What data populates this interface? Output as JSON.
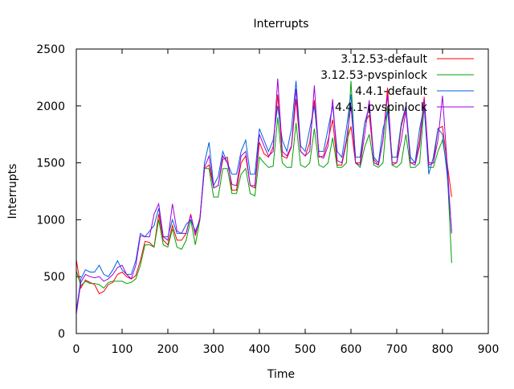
{
  "chart_data": {
    "type": "line",
    "title": "Interrupts",
    "xlabel": "Time",
    "ylabel": "Interrupts",
    "xlim": [
      0,
      900
    ],
    "ylim": [
      0,
      2500
    ],
    "xticks": [
      0,
      100,
      200,
      300,
      400,
      500,
      600,
      700,
      800,
      900
    ],
    "yticks": [
      0,
      500,
      1000,
      1500,
      2000,
      2500
    ],
    "legend_position": "top-right",
    "grid": false,
    "series": [
      {
        "name": "3.12.53-default",
        "color": "#ff0000",
        "x": [
          0,
          10,
          20,
          30,
          40,
          50,
          60,
          70,
          80,
          90,
          100,
          110,
          120,
          130,
          140,
          150,
          160,
          170,
          180,
          190,
          200,
          210,
          220,
          230,
          240,
          250,
          260,
          270,
          280,
          290,
          300,
          310,
          320,
          330,
          340,
          350,
          360,
          370,
          380,
          390,
          400,
          410,
          420,
          430,
          440,
          450,
          460,
          470,
          480,
          490,
          500,
          510,
          520,
          530,
          540,
          550,
          560,
          570,
          580,
          590,
          600,
          610,
          620,
          630,
          640,
          650,
          660,
          670,
          680,
          690,
          700,
          710,
          720,
          730,
          740,
          750,
          760,
          770,
          780,
          790,
          800,
          810,
          820
        ],
        "y": [
          650,
          400,
          470,
          450,
          430,
          350,
          370,
          430,
          450,
          520,
          540,
          500,
          480,
          510,
          640,
          810,
          800,
          760,
          1050,
          820,
          780,
          950,
          820,
          820,
          880,
          1050,
          860,
          1020,
          1450,
          1480,
          1280,
          1300,
          1530,
          1550,
          1260,
          1260,
          1500,
          1560,
          1300,
          1280,
          1680,
          1580,
          1550,
          1640,
          2100,
          1560,
          1540,
          1640,
          2060,
          1600,
          1560,
          1680,
          2050,
          1550,
          1560,
          1700,
          1880,
          1480,
          1480,
          1680,
          1820,
          1500,
          1500,
          1850,
          1920,
          1530,
          1480,
          1700,
          2160,
          1480,
          1500,
          1820,
          1980,
          1500,
          1500,
          1700,
          2080,
          1500,
          1500,
          1800,
          1820,
          1500,
          1200
        ]
      },
      {
        "name": "3.12.53-pvspinlock",
        "color": "#00a000",
        "x": [
          0,
          10,
          20,
          30,
          40,
          50,
          60,
          70,
          80,
          90,
          100,
          110,
          120,
          130,
          140,
          150,
          160,
          170,
          180,
          190,
          200,
          210,
          220,
          230,
          240,
          250,
          260,
          270,
          280,
          290,
          300,
          310,
          320,
          330,
          340,
          350,
          360,
          370,
          380,
          390,
          400,
          410,
          420,
          430,
          440,
          450,
          460,
          470,
          480,
          490,
          500,
          510,
          520,
          530,
          540,
          550,
          560,
          570,
          580,
          590,
          600,
          610,
          620,
          630,
          640,
          650,
          660,
          670,
          680,
          690,
          700,
          710,
          720,
          730,
          740,
          750,
          760,
          770,
          780,
          790,
          800,
          810,
          820
        ],
        "y": [
          550,
          420,
          460,
          440,
          440,
          430,
          400,
          450,
          460,
          460,
          460,
          440,
          450,
          480,
          600,
          780,
          780,
          760,
          1000,
          780,
          760,
          920,
          760,
          740,
          820,
          1000,
          780,
          1000,
          1450,
          1450,
          1200,
          1200,
          1450,
          1450,
          1230,
          1230,
          1400,
          1450,
          1230,
          1210,
          1550,
          1500,
          1460,
          1470,
          1900,
          1500,
          1460,
          1460,
          1850,
          1480,
          1460,
          1500,
          1800,
          1480,
          1460,
          1500,
          1720,
          1460,
          1460,
          1500,
          2220,
          1500,
          1460,
          1640,
          1750,
          1480,
          1460,
          1500,
          2000,
          1480,
          1460,
          1500,
          1750,
          1460,
          1460,
          1500,
          2000,
          1460,
          1460,
          1600,
          1700,
          1460,
          620
        ]
      },
      {
        "name": "4.4.1-default",
        "color": "#0060e0",
        "x": [
          0,
          10,
          20,
          30,
          40,
          50,
          60,
          70,
          80,
          90,
          100,
          110,
          120,
          130,
          140,
          150,
          160,
          170,
          180,
          190,
          200,
          210,
          220,
          230,
          240,
          250,
          260,
          270,
          280,
          290,
          300,
          310,
          320,
          330,
          340,
          350,
          360,
          370,
          380,
          390,
          400,
          410,
          420,
          430,
          440,
          450,
          460,
          470,
          480,
          490,
          500,
          510,
          520,
          530,
          540,
          550,
          560,
          570,
          580,
          590,
          600,
          610,
          620,
          630,
          640,
          650,
          660,
          670,
          680,
          690,
          700,
          710,
          720,
          730,
          740,
          750,
          760,
          770,
          780,
          790,
          800,
          810,
          820
        ],
        "y": [
          200,
          480,
          560,
          540,
          540,
          600,
          520,
          500,
          560,
          640,
          560,
          520,
          520,
          640,
          880,
          850,
          900,
          950,
          1100,
          850,
          850,
          1000,
          880,
          880,
          960,
          1000,
          900,
          1000,
          1500,
          1680,
          1300,
          1380,
          1600,
          1500,
          1400,
          1400,
          1600,
          1700,
          1400,
          1400,
          1800,
          1700,
          1600,
          1700,
          2000,
          1700,
          1600,
          1800,
          2220,
          1650,
          1600,
          1800,
          2000,
          1600,
          1600,
          1800,
          2000,
          1600,
          1550,
          1800,
          2100,
          1550,
          1550,
          1850,
          2000,
          1550,
          1500,
          1800,
          1950,
          1550,
          1550,
          1850,
          2000,
          1550,
          1500,
          1800,
          2000,
          1400,
          1550,
          1800,
          1750,
          1400,
          900
        ]
      },
      {
        "name": "4.4.1-pvspinlock",
        "color": "#a000e0",
        "x": [
          0,
          10,
          20,
          30,
          40,
          50,
          60,
          70,
          80,
          90,
          100,
          110,
          120,
          130,
          140,
          150,
          160,
          170,
          180,
          190,
          200,
          210,
          220,
          230,
          240,
          250,
          260,
          270,
          280,
          290,
          300,
          310,
          320,
          330,
          340,
          350,
          360,
          370,
          380,
          390,
          400,
          410,
          420,
          430,
          440,
          450,
          460,
          470,
          480,
          490,
          500,
          510,
          520,
          530,
          540,
          550,
          560,
          570,
          580,
          590,
          600,
          610,
          620,
          630,
          640,
          650,
          660,
          670,
          680,
          690,
          700,
          710,
          720,
          730,
          740,
          750,
          760,
          770,
          780,
          790,
          800,
          810,
          820
        ],
        "y": [
          170,
          450,
          520,
          500,
          490,
          500,
          460,
          480,
          520,
          580,
          600,
          520,
          480,
          600,
          860,
          850,
          850,
          1050,
          1140,
          850,
          820,
          1140,
          900,
          880,
          880,
          1040,
          880,
          1000,
          1460,
          1560,
          1280,
          1300,
          1560,
          1500,
          1310,
          1300,
          1560,
          1600,
          1300,
          1300,
          1750,
          1650,
          1560,
          1600,
          2240,
          1600,
          1560,
          1650,
          2150,
          1600,
          1560,
          1600,
          2180,
          1560,
          1540,
          1650,
          2060,
          1520,
          1500,
          1700,
          2000,
          1500,
          1480,
          1750,
          2050,
          1500,
          1480,
          1700,
          2100,
          1500,
          1500,
          1700,
          1960,
          1500,
          1480,
          1650,
          2060,
          1480,
          1500,
          1700,
          2090,
          1500,
          880
        ]
      }
    ]
  }
}
